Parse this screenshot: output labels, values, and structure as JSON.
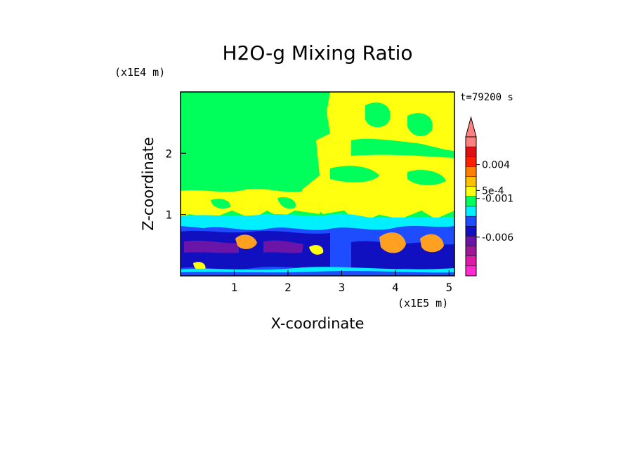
{
  "chart_data": {
    "type": "heatmap",
    "title": "H2O-g Mixing Ratio",
    "xlabel": "X-coordinate",
    "ylabel": "Z-coordinate",
    "x_unit": "(x1E5 m)",
    "y_unit": "(x1E4 m)",
    "time_label": "t=79200 s",
    "x_ticks": [
      "1",
      "2",
      "3",
      "4",
      "5"
    ],
    "x_tick_values": [
      1,
      2,
      3,
      4,
      5
    ],
    "y_ticks": [
      "1",
      "2"
    ],
    "y_tick_values": [
      1,
      2
    ],
    "xlim": [
      0,
      5.1
    ],
    "ylim": [
      0,
      3.0
    ],
    "colorbar": {
      "labels": [
        "0.004",
        "5e-4",
        "-0.001",
        "-0.006"
      ],
      "label_positions": [
        0.004,
        0.0005,
        -0.001,
        -0.006
      ],
      "colors_bottom_to_top": [
        "#ff2bd0",
        "#e01aa8",
        "#a01898",
        "#6a14a8",
        "#1010c0",
        "#1e4cff",
        "#00f0ff",
        "#00ff5a",
        "#ffff10",
        "#ffc000",
        "#ff8000",
        "#ff2000",
        "#e01010",
        "#ff8080"
      ],
      "extend": "max"
    },
    "colors": {
      "background_field": "#00ff5a",
      "upper_features": "#ffff10",
      "boundary_layer": "#1e4cff",
      "dense_layer": "#1010c0",
      "deep_layer": "#6a14a8",
      "transition": "#00f0ff",
      "warm_blobs": "#ffa020"
    }
  }
}
